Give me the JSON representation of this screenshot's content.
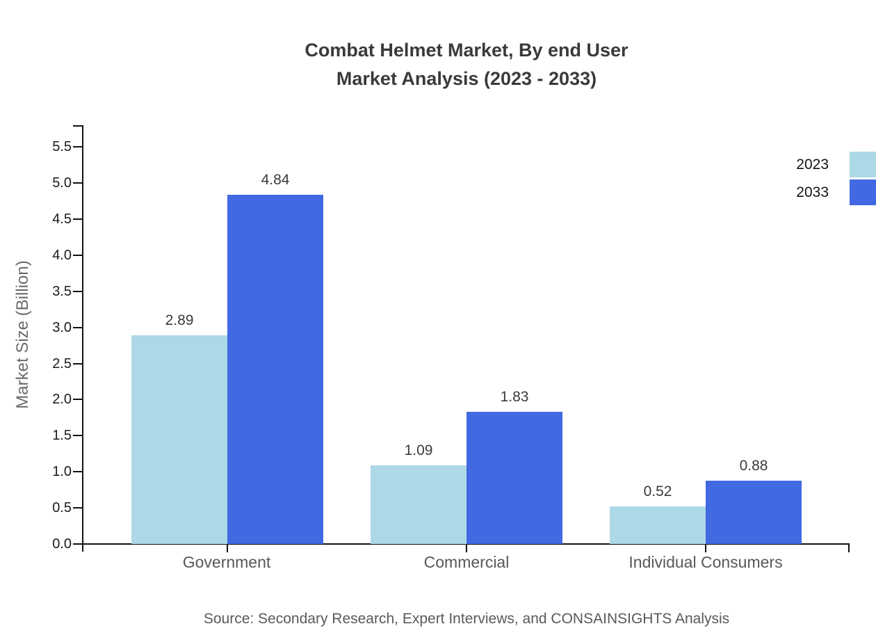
{
  "title": {
    "line1": "Combat Helmet Market, By end User",
    "line2": "Market Analysis (2023 - 2033)"
  },
  "source": "Source: Secondary Research, Expert Interviews, and CONSAINSIGHTS Analysis",
  "chart_data": {
    "type": "bar",
    "title": "Combat Helmet Market, By end User Market Analysis (2023 - 2033)",
    "categories": [
      "Government",
      "Commercial",
      "Individual Consumers"
    ],
    "series": [
      {
        "name": "2023",
        "color": "#add8e6",
        "values": [
          2.89,
          1.09,
          0.52
        ]
      },
      {
        "name": "2033",
        "color": "#4169e1",
        "values": [
          4.84,
          1.83,
          0.88
        ]
      }
    ],
    "xlabel": "",
    "ylabel": "Market Size (Billion)",
    "ylim": [
      0.0,
      5.8
    ],
    "yticks": [
      0.0,
      0.5,
      1.0,
      1.5,
      2.0,
      2.5,
      3.0,
      3.5,
      4.0,
      4.5,
      5.0,
      5.5
    ],
    "grid": false,
    "legend_position": "top-right",
    "value_labels": true,
    "colors": {
      "axis": "#111111",
      "title_text": "#3a3a3a",
      "tick_text": "#1a1a1a",
      "category_text": "#585858",
      "source_text": "#595959"
    }
  }
}
